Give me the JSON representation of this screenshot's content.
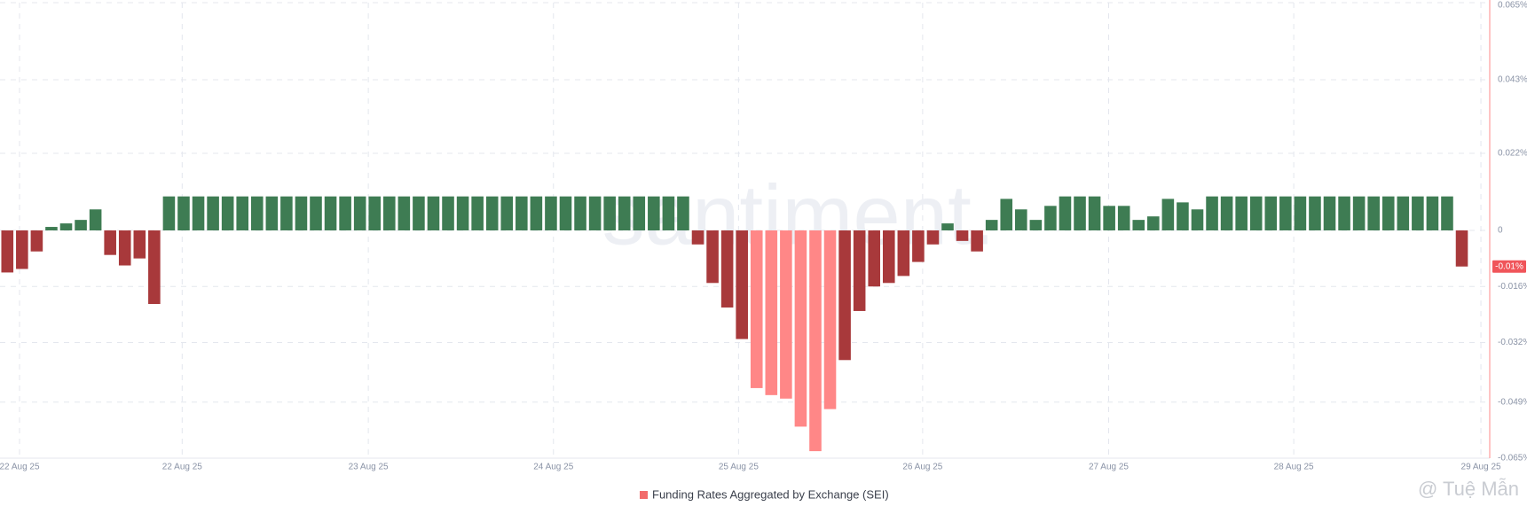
{
  "chart_data": {
    "type": "bar",
    "legend": "Funding Rates Aggregated by Exchange (SEI)",
    "watermark": "santiment.",
    "credit": "@ Tuệ Mẫn",
    "colors": {
      "up": "#3e7c53",
      "down": "#a8393b",
      "extreme": "#ff8787"
    },
    "extreme_range": [
      51,
      56
    ],
    "grid": true,
    "xlim": [
      0,
      101.4
    ],
    "xticks": [
      {
        "value": 1.33,
        "label": "22 Aug 25"
      },
      {
        "value": 12.4,
        "label": "22 Aug 25"
      },
      {
        "value": 25.07,
        "label": "23 Aug 25"
      },
      {
        "value": 37.67,
        "label": "24 Aug 25"
      },
      {
        "value": 50.27,
        "label": "25 Aug 25"
      },
      {
        "value": 62.8,
        "label": "26 Aug 25"
      },
      {
        "value": 75.46,
        "label": "27 Aug 25"
      },
      {
        "value": 88.06,
        "label": "28 Aug 25"
      },
      {
        "value": 100.8,
        "label": "29 Aug 25"
      }
    ],
    "ylim": [
      -0.065,
      0.065
    ],
    "yticks": [
      {
        "value": 0.065,
        "label": "0.065%"
      },
      {
        "value": 0.043,
        "label": "0.043%"
      },
      {
        "value": 0.022,
        "label": "0.022%"
      },
      0,
      {
        "value": -0.016,
        "label": "-0.016%"
      },
      {
        "value": -0.032,
        "label": "-0.032%"
      },
      {
        "value": -0.049,
        "label": "-0.049%"
      },
      {
        "value": -0.065,
        "label": "-0.065%"
      }
    ],
    "values": [
      -0.012,
      -0.011,
      -0.006,
      0.001,
      0.002,
      0.003,
      0.006,
      -0.007,
      -0.01,
      -0.008,
      -0.021,
      0.0097,
      0.0097,
      0.0097,
      0.0097,
      0.0097,
      0.0097,
      0.0097,
      0.0097,
      0.0097,
      0.0097,
      0.0097,
      0.0097,
      0.0097,
      0.0097,
      0.0097,
      0.0097,
      0.0097,
      0.0097,
      0.0097,
      0.0097,
      0.0097,
      0.0097,
      0.0097,
      0.0097,
      0.0097,
      0.0097,
      0.0097,
      0.0097,
      0.0097,
      0.0097,
      0.0097,
      0.0097,
      0.0097,
      0.0097,
      0.0097,
      0.0097,
      -0.004,
      -0.015,
      -0.022,
      -0.031,
      -0.045,
      -0.047,
      -0.048,
      -0.056,
      -0.063,
      -0.051,
      -0.037,
      -0.023,
      -0.016,
      -0.015,
      -0.013,
      -0.009,
      -0.004,
      0.002,
      -0.003,
      -0.006,
      0.003,
      0.009,
      0.006,
      0.003,
      0.007,
      0.0097,
      0.0097,
      0.0097,
      0.007,
      0.007,
      0.003,
      0.004,
      0.009,
      0.008,
      0.006,
      0.0097,
      0.0097,
      0.0097,
      0.0097,
      0.0097,
      0.0097,
      0.0097,
      0.0097,
      0.0097,
      0.0097,
      0.0097,
      0.0097,
      0.0097,
      0.0097,
      0.0097,
      0.0097,
      0.0097,
      -0.0103
    ],
    "value_labels": [
      null,
      null,
      null,
      null,
      null,
      null,
      null,
      null,
      null,
      null,
      null,
      null,
      null,
      null,
      null,
      null,
      null,
      null,
      null,
      null,
      null,
      null,
      null,
      null,
      null,
      null,
      null,
      null,
      null,
      null,
      null,
      null,
      null,
      null,
      null,
      null,
      null,
      null,
      null,
      null,
      null,
      null,
      null,
      null,
      null,
      null,
      null,
      null,
      null,
      null,
      null,
      null,
      null,
      null,
      null,
      null,
      null,
      null,
      null,
      null,
      null,
      null,
      null,
      null,
      null,
      null,
      null,
      null,
      null,
      null,
      null,
      null,
      null,
      null,
      null,
      null,
      null,
      null,
      null,
      null,
      null,
      null,
      null,
      null,
      null,
      null,
      null,
      null,
      null,
      null,
      null,
      null,
      null,
      null,
      null,
      null,
      null,
      null,
      null,
      "-0.01%"
    ]
  }
}
